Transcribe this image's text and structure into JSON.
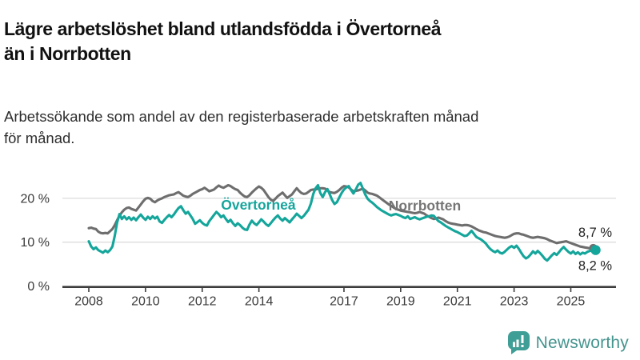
{
  "header": {
    "title": "Lägre arbetslöshet bland utlandsfödda i Övertorneå\nän i Norrbotten",
    "subtitle": "Arbetssökande som andel av den registerbaserade arbetskraften månad\nför månad."
  },
  "footer": {
    "brand": "Newsworthy",
    "logo_icon": "newsworthy-chart-bubble-icon"
  },
  "colors": {
    "overtornea": "#14a59b",
    "norrbotten": "#6e6e6e",
    "grid": "#dcdcdc",
    "axis": "#3d3d3d",
    "tick_text": "#3a3a3a",
    "end_label_text": "#222222",
    "brand_icon": "#3f9e96",
    "brand_text": "#45948e"
  },
  "chart_data": {
    "type": "line",
    "unit": "%",
    "title": "Lägre arbetslöshet bland utlandsfödda i Övertorneå än i Norrbotten",
    "subtitle": "Arbetssökande som andel av den registerbaserade arbetskraften månad för månad.",
    "grid": "horizontal-only",
    "legend_position": "inline-labels",
    "x_axis": {
      "tick_labels": [
        "2008",
        "2010",
        "2012",
        "2014",
        "2017",
        "2019",
        "2021",
        "2023",
        "2025"
      ],
      "tick_years": [
        2008,
        2010,
        2012,
        2014,
        2017,
        2019,
        2021,
        2023,
        2025
      ],
      "start_year": 2008.0,
      "end_year": 2025.83
    },
    "y_axis": {
      "range": [
        0,
        24
      ],
      "ticks": [
        {
          "value": 0,
          "label": "0 %"
        },
        {
          "value": 10,
          "label": "10 %"
        },
        {
          "value": 20,
          "label": "20 %"
        }
      ]
    },
    "inline_labels": [
      {
        "text": "Övertorneå",
        "x": 2013.98,
        "y": 18.5,
        "color": "#14a59b"
      },
      {
        "text": "Norrbotten",
        "x": 2019.85,
        "y": 18.3,
        "color": "#757575"
      }
    ],
    "series": [
      {
        "name": "Norrbotten",
        "color": "#6e6e6e",
        "start": 2008.0,
        "step_months": 1,
        "end_label": "8,7 %",
        "end_label_side": "above",
        "last_value": 8.7,
        "values": [
          13.2,
          13.3,
          13.1,
          13.0,
          12.4,
          12.1,
          12.0,
          12.1,
          12.0,
          12.5,
          13.0,
          13.9,
          15.0,
          16.0,
          16.8,
          17.4,
          17.8,
          17.9,
          17.6,
          17.4,
          17.2,
          17.9,
          18.6,
          19.3,
          19.9,
          20.1,
          19.9,
          19.4,
          19.1,
          19.5,
          19.8,
          20.0,
          20.3,
          20.5,
          20.7,
          20.8,
          20.9,
          21.2,
          21.4,
          21.0,
          20.6,
          20.4,
          20.3,
          20.6,
          21.0,
          21.3,
          21.6,
          21.9,
          22.1,
          22.4,
          22.0,
          21.6,
          21.8,
          22.0,
          22.5,
          22.9,
          22.6,
          22.4,
          22.7,
          23.0,
          22.8,
          22.4,
          22.1,
          21.9,
          21.3,
          20.8,
          20.4,
          20.3,
          20.7,
          21.3,
          21.8,
          22.3,
          22.7,
          22.4,
          21.9,
          21.1,
          20.3,
          19.7,
          19.4,
          19.9,
          20.5,
          20.9,
          21.3,
          20.7,
          20.1,
          20.5,
          20.9,
          21.6,
          22.3,
          21.7,
          21.2,
          21.0,
          21.1,
          21.5,
          21.9,
          22.0,
          22.0,
          22.2,
          22.3,
          22.3,
          22.2,
          21.8,
          21.4,
          21.3,
          21.2,
          21.5,
          21.9,
          22.4,
          22.8,
          22.7,
          22.5,
          22.0,
          21.6,
          21.7,
          21.8,
          22.0,
          22.2,
          21.8,
          21.3,
          21.1,
          21.0,
          20.8,
          20.6,
          20.2,
          19.8,
          19.4,
          19.0,
          18.6,
          18.3,
          17.9,
          17.6,
          17.4,
          17.2,
          17.1,
          17.0,
          16.9,
          16.8,
          16.7,
          16.6,
          16.7,
          16.9,
          16.7,
          16.5,
          16.1,
          15.8,
          15.5,
          15.3,
          15.4,
          15.6,
          15.4,
          15.2,
          14.8,
          14.5,
          14.3,
          14.2,
          14.1,
          14.0,
          13.9,
          13.8,
          13.9,
          13.9,
          13.8,
          13.6,
          13.3,
          13.0,
          12.7,
          12.5,
          12.3,
          12.2,
          12.0,
          11.8,
          11.6,
          11.4,
          11.3,
          11.2,
          11.1,
          11.0,
          11.1,
          11.3,
          11.6,
          11.9,
          12.0,
          12.0,
          11.8,
          11.7,
          11.5,
          11.3,
          11.1,
          11.0,
          11.1,
          11.2,
          11.1,
          11.0,
          10.9,
          10.7,
          10.4,
          10.2,
          10.0,
          9.8,
          9.9,
          10.0,
          10.1,
          10.2,
          10.0,
          9.8,
          9.6,
          9.4,
          9.2,
          9.0,
          8.9,
          8.8,
          8.7,
          8.6,
          8.6,
          8.7
        ]
      },
      {
        "name": "Övertorneå",
        "color": "#14a59b",
        "start": 2008.0,
        "step_months": 1,
        "end_label": "8,2 %",
        "end_label_side": "below",
        "last_value": 8.2,
        "values": [
          10.2,
          9.0,
          8.4,
          8.8,
          8.2,
          7.9,
          7.6,
          8.1,
          7.7,
          8.2,
          9.0,
          11.5,
          14.5,
          16.4,
          15.3,
          15.9,
          15.2,
          15.7,
          15.1,
          15.6,
          15.0,
          15.7,
          16.3,
          15.6,
          15.1,
          15.8,
          15.3,
          15.9,
          15.4,
          15.8,
          14.7,
          14.4,
          15.1,
          15.7,
          16.2,
          15.7,
          16.3,
          17.1,
          17.8,
          18.2,
          17.3,
          16.5,
          16.9,
          16.1,
          15.3,
          14.2,
          14.6,
          15.0,
          14.4,
          14.0,
          13.8,
          14.8,
          15.5,
          16.2,
          16.9,
          16.4,
          15.7,
          16.1,
          15.3,
          14.6,
          15.1,
          14.3,
          13.7,
          14.3,
          13.9,
          13.3,
          12.9,
          12.8,
          14.0,
          14.9,
          14.3,
          13.9,
          14.5,
          15.2,
          14.7,
          14.1,
          13.7,
          14.3,
          15.0,
          15.6,
          16.1,
          15.4,
          14.9,
          15.5,
          15.0,
          14.5,
          15.2,
          15.8,
          16.5,
          16.0,
          15.5,
          16.0,
          16.7,
          17.4,
          18.8,
          21.0,
          22.3,
          23.0,
          21.2,
          20.3,
          21.4,
          22.1,
          20.9,
          19.6,
          18.7,
          19.1,
          20.2,
          21.2,
          22.0,
          22.5,
          22.8,
          21.9,
          21.1,
          22.0,
          23.1,
          23.5,
          22.2,
          20.9,
          19.9,
          19.4,
          19.0,
          18.5,
          18.0,
          17.6,
          17.2,
          16.9,
          16.6,
          16.3,
          16.1,
          16.3,
          16.4,
          16.2,
          16.0,
          15.7,
          15.5,
          15.9,
          15.3,
          15.5,
          15.7,
          15.4,
          15.2,
          15.4,
          15.6,
          15.8,
          15.9,
          16.1,
          16.0,
          15.4,
          14.8,
          14.5,
          14.1,
          13.7,
          13.4,
          13.1,
          12.8,
          12.5,
          12.3,
          12.0,
          11.7,
          11.4,
          11.5,
          12.0,
          12.6,
          11.9,
          11.2,
          10.9,
          10.6,
          10.2,
          9.7,
          9.0,
          8.4,
          8.0,
          7.7,
          8.1,
          7.6,
          7.4,
          7.8,
          8.3,
          8.8,
          9.1,
          8.7,
          9.2,
          8.5,
          7.6,
          6.8,
          6.3,
          6.6,
          7.2,
          7.9,
          7.4,
          8.0,
          7.5,
          6.9,
          6.2,
          5.8,
          6.4,
          7.0,
          7.5,
          7.1,
          7.7,
          8.4,
          8.9,
          8.3,
          7.8,
          7.4,
          7.9,
          7.3,
          7.7,
          7.2,
          7.6,
          7.4,
          7.8,
          8.0,
          8.1,
          8.2
        ]
      }
    ]
  }
}
